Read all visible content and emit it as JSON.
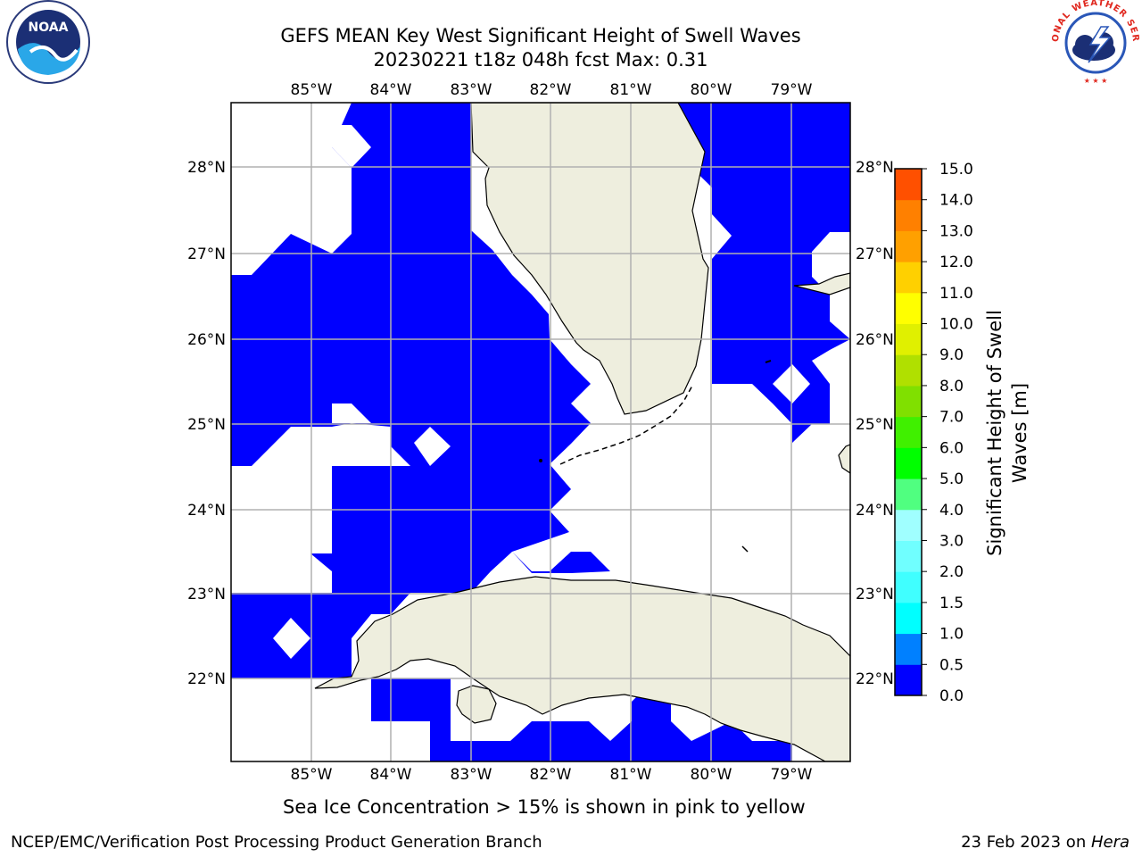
{
  "title": {
    "line1": "GEFS MEAN Key West Significant Height of Swell Waves",
    "line2": "20230221 t18z 048h fcst   Max: 0.31"
  },
  "map": {
    "lon_labels": [
      "85°W",
      "84°W",
      "83°W",
      "82°W",
      "81°W",
      "80°W",
      "79°W"
    ],
    "lat_labels": [
      "28°N",
      "27°N",
      "26°N",
      "25°N",
      "24°N",
      "23°N",
      "22°N"
    ],
    "colors": {
      "land": "#EEEEDE",
      "ocean_blue": "#0000FF",
      "grid": "#B0B0B0",
      "coast": "#000000"
    }
  },
  "colorbar": {
    "label": "Significant Height of Swell Waves [m]",
    "ticks": [
      "15.0",
      "14.0",
      "13.0",
      "12.0",
      "11.0",
      "10.0",
      "9.0",
      "8.0",
      "7.0",
      "6.0",
      "5.0",
      "4.0",
      "3.0",
      "2.0",
      "1.5",
      "1.0",
      "0.5",
      "0.0"
    ],
    "colors": [
      "#0000FF",
      "#0080FF",
      "#00FFFF",
      "#40FFFF",
      "#70FFFF",
      "#A0FFFF",
      "#50FF80",
      "#00FF00",
      "#40F000",
      "#80E000",
      "#B0E000",
      "#E0F000",
      "#FFFF00",
      "#FFD000",
      "#FFA000",
      "#FF8000",
      "#FF5000",
      "#FF2000",
      "#FF0000"
    ]
  },
  "note": "Sea Ice Concentration > 15% is shown in pink to yellow",
  "footer": {
    "credit": "NCEP/EMC/Verification Post Processing Product Generation Branch",
    "date": "23 Feb 2023 on ",
    "host": "Hera"
  },
  "logos": {
    "noaa": "NOAA",
    "nws_ring": "NATIONAL WEATHER SERVICE"
  }
}
